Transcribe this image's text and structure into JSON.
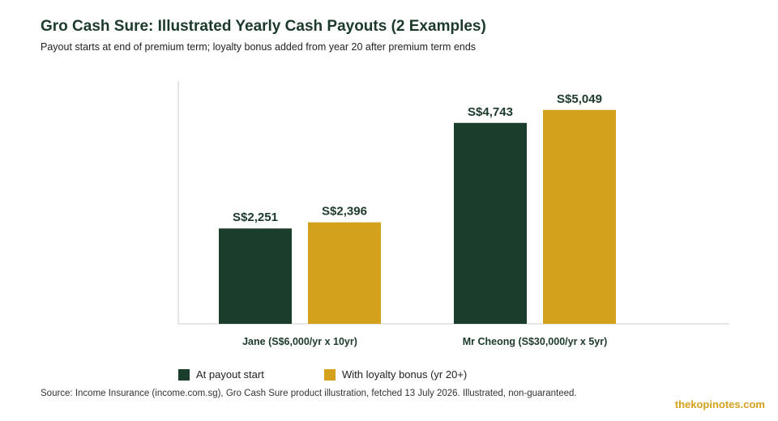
{
  "chart_data": {
    "type": "bar",
    "title": "Gro Cash Sure: Illustrated Yearly Cash Payouts (2 Examples)",
    "subtitle": "Payout starts at end of premium term; loyalty bonus added from year 20 after premium term ends",
    "categories": [
      "Jane (S$6,000/yr x 10yr)",
      "Mr Cheong (S$30,000/yr x 5yr)"
    ],
    "series": [
      {
        "name": "At payout start",
        "color": "#1b3d2b",
        "values": [
          2251,
          4743
        ],
        "labels": [
          "S$2,251",
          "S$4,743"
        ]
      },
      {
        "name": "With loyalty bonus (yr 20+)",
        "color": "#d4a11c",
        "values": [
          2396,
          5049
        ],
        "labels": [
          "S$2,396",
          "S$5,049"
        ]
      }
    ],
    "ylim": [
      0,
      6000
    ],
    "grid": false,
    "legend": "bottom-left"
  },
  "footer": {
    "source": "Source: Income Insurance (income.com.sg), Gro Cash Sure product illustration, fetched 13 July 2026. Illustrated, non-guaranteed.",
    "brand": "thekopinotes.com"
  }
}
